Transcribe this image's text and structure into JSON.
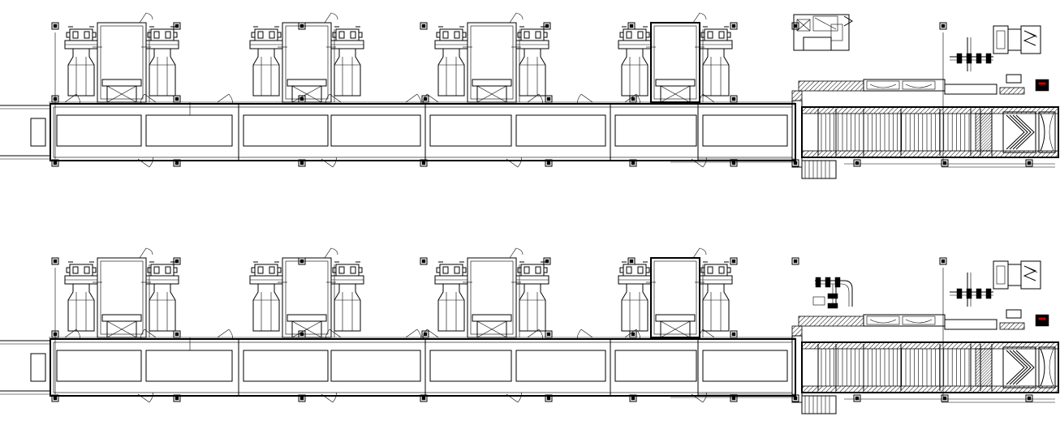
{
  "drawing": {
    "rows": [
      {
        "furnace_units": [
          {
            "has_top_unit": true
          },
          {
            "has_top_unit": true
          },
          {
            "has_top_unit": true
          },
          {
            "has_top_unit": true
          }
        ],
        "tail": "blower-box"
      },
      {
        "furnace_units": [
          {
            "has_top_unit": true
          },
          {
            "has_top_unit": true
          },
          {
            "has_top_unit": true
          },
          {
            "has_top_unit": true
          }
        ],
        "tail": "pipework"
      }
    ],
    "colors": {
      "line": "#000000",
      "background": "#ffffff",
      "accent": "#cc0000"
    }
  }
}
